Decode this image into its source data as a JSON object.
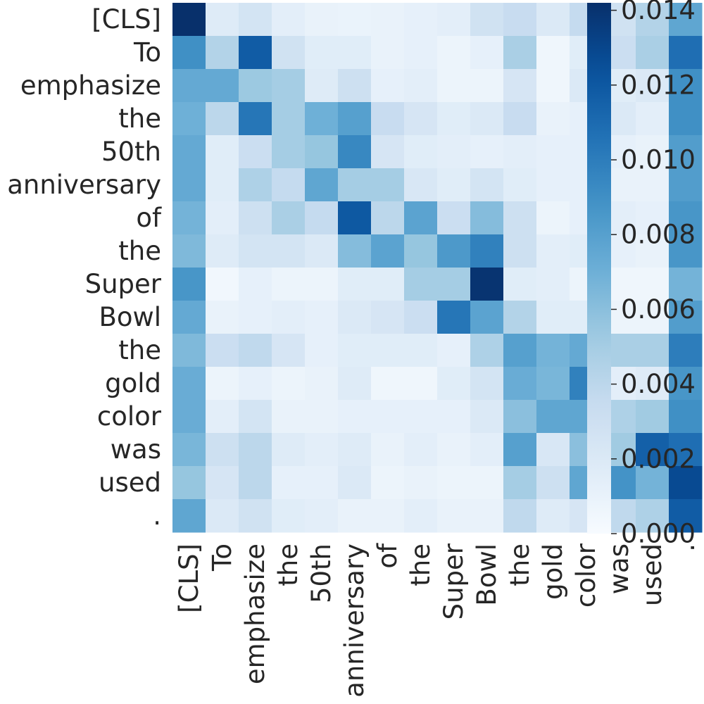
{
  "chart_data": {
    "type": "heatmap",
    "title": "",
    "xlabel": "",
    "ylabel": "",
    "x_tokens": [
      "[CLS]",
      "To",
      "emphasize",
      "the",
      "50th",
      "anniversary",
      "of",
      "the",
      "Super",
      "Bowl",
      "the",
      "gold",
      "color",
      "was",
      "used",
      "."
    ],
    "y_tokens": [
      "[CLS]",
      "To",
      "emphasize",
      "the",
      "50th",
      "anniversary",
      "of",
      "the",
      "Super",
      "Bowl",
      "the",
      "gold",
      "color",
      "was",
      "used",
      "."
    ],
    "colormap": "Blues",
    "color_low": "#f7fbff",
    "color_high": "#08306b",
    "vmin": 0.0,
    "vmax": 0.0142,
    "colorbar_ticks": [
      "0.000",
      "0.002",
      "0.004",
      "0.006",
      "0.008",
      "0.010",
      "0.012",
      "0.014"
    ],
    "colorbar_tick_values": [
      0.0,
      0.002,
      0.004,
      0.006,
      0.008,
      0.01,
      0.012,
      0.014
    ],
    "matrix": [
      [
        0.0142,
        0.0018,
        0.0026,
        0.0014,
        0.001,
        0.0009,
        0.001,
        0.0012,
        0.0014,
        0.0028,
        0.0034,
        0.002,
        0.0036,
        0.0028,
        0.0044,
        0.0076
      ],
      [
        0.009,
        0.0044,
        0.0118,
        0.0028,
        0.0016,
        0.0016,
        0.001,
        0.0012,
        0.0008,
        0.0012,
        0.0048,
        0.0006,
        0.0016,
        0.0032,
        0.0048,
        0.0108
      ],
      [
        0.0074,
        0.0074,
        0.0054,
        0.005,
        0.0018,
        0.003,
        0.0012,
        0.0014,
        0.0008,
        0.0008,
        0.0024,
        0.0006,
        0.002,
        0.0016,
        0.002,
        0.009
      ],
      [
        0.007,
        0.004,
        0.0104,
        0.005,
        0.007,
        0.008,
        0.0034,
        0.0024,
        0.0016,
        0.002,
        0.0034,
        0.001,
        0.0012,
        0.002,
        0.0014,
        0.009
      ],
      [
        0.0074,
        0.0016,
        0.0032,
        0.005,
        0.0056,
        0.0094,
        0.0024,
        0.0016,
        0.0014,
        0.0012,
        0.0014,
        0.0012,
        0.0012,
        0.0012,
        0.001,
        0.0082
      ],
      [
        0.0074,
        0.0016,
        0.0046,
        0.0036,
        0.0076,
        0.005,
        0.005,
        0.0022,
        0.0016,
        0.0026,
        0.0016,
        0.0012,
        0.0012,
        0.001,
        0.001,
        0.0082
      ],
      [
        0.0068,
        0.0014,
        0.003,
        0.0048,
        0.0036,
        0.012,
        0.004,
        0.0078,
        0.0032,
        0.0062,
        0.003,
        0.0008,
        0.0012,
        0.0014,
        0.0012,
        0.0086
      ],
      [
        0.0064,
        0.0018,
        0.0026,
        0.0026,
        0.002,
        0.0062,
        0.0078,
        0.0056,
        0.0084,
        0.0098,
        0.003,
        0.0014,
        0.0016,
        0.0012,
        0.001,
        0.0086
      ],
      [
        0.0086,
        0.0004,
        0.0012,
        0.0008,
        0.0008,
        0.0016,
        0.0016,
        0.005,
        0.005,
        0.014,
        0.0016,
        0.0014,
        0.0008,
        0.0006,
        0.0006,
        0.0068
      ],
      [
        0.0074,
        0.001,
        0.0012,
        0.0014,
        0.0012,
        0.002,
        0.0024,
        0.0032,
        0.0104,
        0.0078,
        0.0044,
        0.0016,
        0.0016,
        0.0008,
        0.0008,
        0.0082
      ],
      [
        0.0064,
        0.0032,
        0.0038,
        0.0024,
        0.0012,
        0.0016,
        0.0016,
        0.0016,
        0.0012,
        0.0046,
        0.008,
        0.0068,
        0.0074,
        0.0048,
        0.0048,
        0.01
      ],
      [
        0.0072,
        0.0008,
        0.0012,
        0.0008,
        0.001,
        0.0018,
        0.0006,
        0.0006,
        0.0016,
        0.0026,
        0.0072,
        0.0066,
        0.0098,
        0.0014,
        0.0018,
        0.0086
      ],
      [
        0.0072,
        0.0014,
        0.0026,
        0.001,
        0.001,
        0.0012,
        0.0012,
        0.0012,
        0.0012,
        0.002,
        0.006,
        0.0076,
        0.0076,
        0.0046,
        0.0052,
        0.009
      ],
      [
        0.0066,
        0.003,
        0.004,
        0.0018,
        0.0014,
        0.0018,
        0.001,
        0.0014,
        0.001,
        0.0014,
        0.008,
        0.0022,
        0.006,
        0.0052,
        0.0116,
        0.0108
      ],
      [
        0.0056,
        0.0024,
        0.004,
        0.0012,
        0.0012,
        0.002,
        0.0008,
        0.001,
        0.0008,
        0.0008,
        0.005,
        0.003,
        0.0076,
        0.0088,
        0.0068,
        0.0128
      ],
      [
        0.0076,
        0.002,
        0.0028,
        0.0016,
        0.0014,
        0.001,
        0.001,
        0.0014,
        0.001,
        0.001,
        0.0038,
        0.0018,
        0.0024,
        0.0038,
        0.0046,
        0.0118
      ]
    ]
  }
}
